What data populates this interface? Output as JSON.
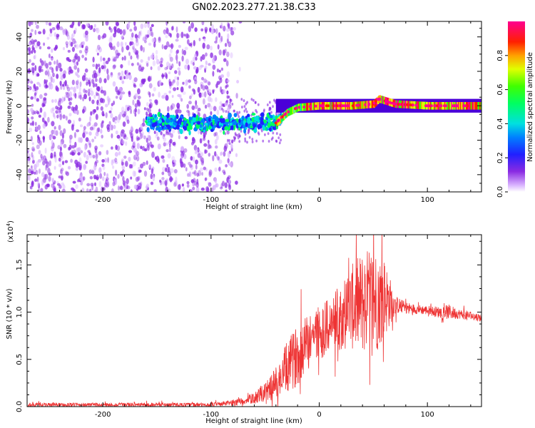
{
  "figure": {
    "title": "GN02.2023.277.21.38.C33"
  },
  "chart_data": [
    {
      "type": "heatmap",
      "title": "GN02.2023.277.21.38.C33",
      "xlabel": "Height of straight line (km)",
      "ylabel": "Frequency (Hz)",
      "xlim": [
        -270,
        150
      ],
      "ylim": [
        -50,
        49
      ],
      "xticks": [
        -200,
        -100,
        0,
        100
      ],
      "xtick_labels": [
        "-200",
        "-100",
        "0",
        "100"
      ],
      "yticks": [
        -40,
        -20,
        0,
        20,
        40
      ],
      "ytick_labels": [
        "-40",
        "-20",
        "0",
        "20",
        "40"
      ],
      "colorbar": {
        "label": "Normalized spectral amplitude",
        "range": [
          0,
          1
        ],
        "ticks": [
          0.0,
          0.2,
          0.4,
          0.6,
          0.8
        ],
        "tick_labels": [
          "0.0",
          "0.2",
          "0.4",
          "0.6",
          "0.8"
        ],
        "colormap": "purple-blue-cyan-green-yellow-red-magenta"
      },
      "regions": [
        {
          "x": [
            -270,
            -90
          ],
          "freq_band": [
            -50,
            49
          ],
          "amplitude": 0.05,
          "pattern": "broadband scattered noise"
        },
        {
          "x": [
            -160,
            -40
          ],
          "freq_band": [
            -12,
            5
          ],
          "amplitude": 0.3,
          "pattern": "concentrated energy near 0 Hz"
        },
        {
          "x": [
            -40,
            150
          ],
          "freq_band": [
            -3,
            4
          ],
          "amplitude": 0.6,
          "pattern": "narrow band along 0 Hz, peaks up to 0.9"
        }
      ],
      "ridge": [
        [
          -40,
          -10
        ],
        [
          -30,
          -4
        ],
        [
          -20,
          -1
        ],
        [
          0,
          0
        ],
        [
          30,
          0
        ],
        [
          50,
          1
        ],
        [
          55,
          4
        ],
        [
          60,
          3
        ],
        [
          70,
          1
        ],
        [
          100,
          0
        ],
        [
          150,
          0
        ]
      ],
      "grid": false
    },
    {
      "type": "line",
      "xlabel": "Height of straight line (km)",
      "ylabel": "SNR (10 * v/v)",
      "multiplier_label": "(x10",
      "multiplier_exp": "4",
      "multiplier_close": ")",
      "xlim": [
        -270,
        150
      ],
      "ylim": [
        0,
        1.82
      ],
      "xticks": [
        -200,
        -100,
        0,
        100
      ],
      "xtick_labels": [
        "-200",
        "-100",
        "0",
        "100"
      ],
      "yticks": [
        0.0,
        0.5,
        1.0,
        1.5
      ],
      "ytick_labels": [
        "0.0",
        "0.5",
        "1.0",
        "1.5"
      ],
      "grid": false,
      "series": [
        {
          "color": "#ee3333",
          "envelope": {
            "x": [
              -270,
              -200,
              -150,
              -100,
              -80,
              -70,
              -60,
              -50,
              -40,
              -30,
              -20,
              -10,
              0,
              10,
              20,
              30,
              40,
              50,
              60,
              70,
              80,
              90,
              100,
              110,
              120,
              130,
              140,
              150
            ],
            "mean": [
              0.02,
              0.02,
              0.02,
              0.02,
              0.04,
              0.06,
              0.09,
              0.15,
              0.25,
              0.4,
              0.55,
              0.7,
              0.8,
              0.85,
              0.95,
              1.05,
              1.1,
              1.12,
              1.15,
              1.08,
              1.05,
              1.03,
              1.02,
              1.0,
              1.0,
              0.98,
              0.96,
              0.94
            ],
            "amp": [
              0.02,
              0.02,
              0.02,
              0.02,
              0.03,
              0.04,
              0.06,
              0.1,
              0.18,
              0.28,
              0.32,
              0.32,
              0.3,
              0.3,
              0.35,
              0.45,
              0.55,
              0.6,
              0.45,
              0.1,
              0.06,
              0.05,
              0.05,
              0.06,
              0.08,
              0.05,
              0.05,
              0.04
            ]
          }
        }
      ]
    }
  ]
}
